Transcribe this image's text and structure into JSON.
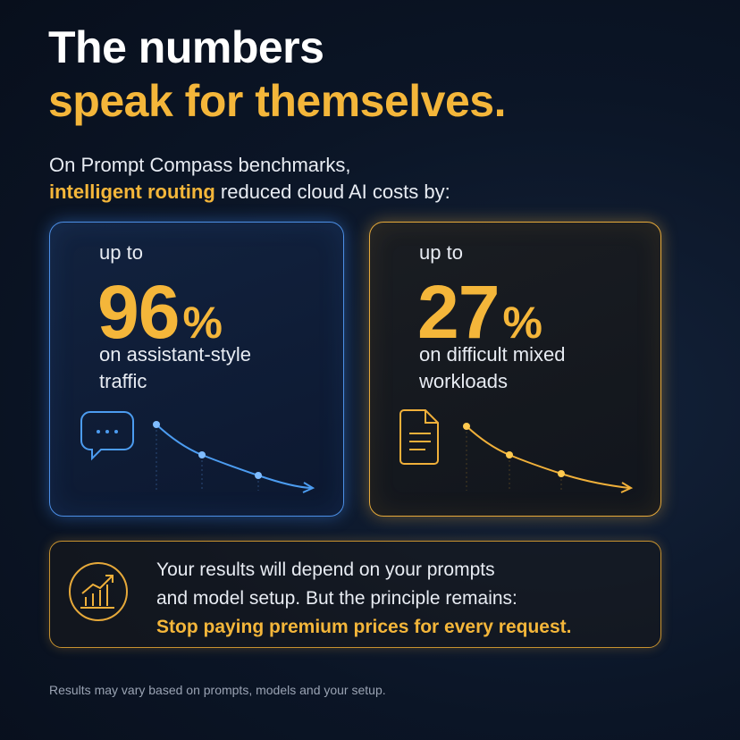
{
  "header": {
    "title_line1": "The numbers",
    "title_line2": "speak for themselves."
  },
  "intro": {
    "line1": "On Prompt Compass benchmarks,",
    "highlight": "intelligent routing",
    "line2_rest": "reduced cloud AI costs by:"
  },
  "cards": [
    {
      "prefix": "up to",
      "value": 96,
      "unit": "%",
      "description_lines": [
        "on assistant-style",
        "traffic"
      ]
    },
    {
      "prefix": "up to",
      "value": 27,
      "unit": "%",
      "description_lines": [
        "on difficult mixed",
        "workloads"
      ]
    }
  ],
  "note": {
    "lines": [
      "Your results will depend on your prompts",
      "and model setup. But the principle remains:"
    ],
    "highlight": "Stop paying premium prices for every request."
  },
  "footer": "Results may vary based on prompts, models and your setup."
}
